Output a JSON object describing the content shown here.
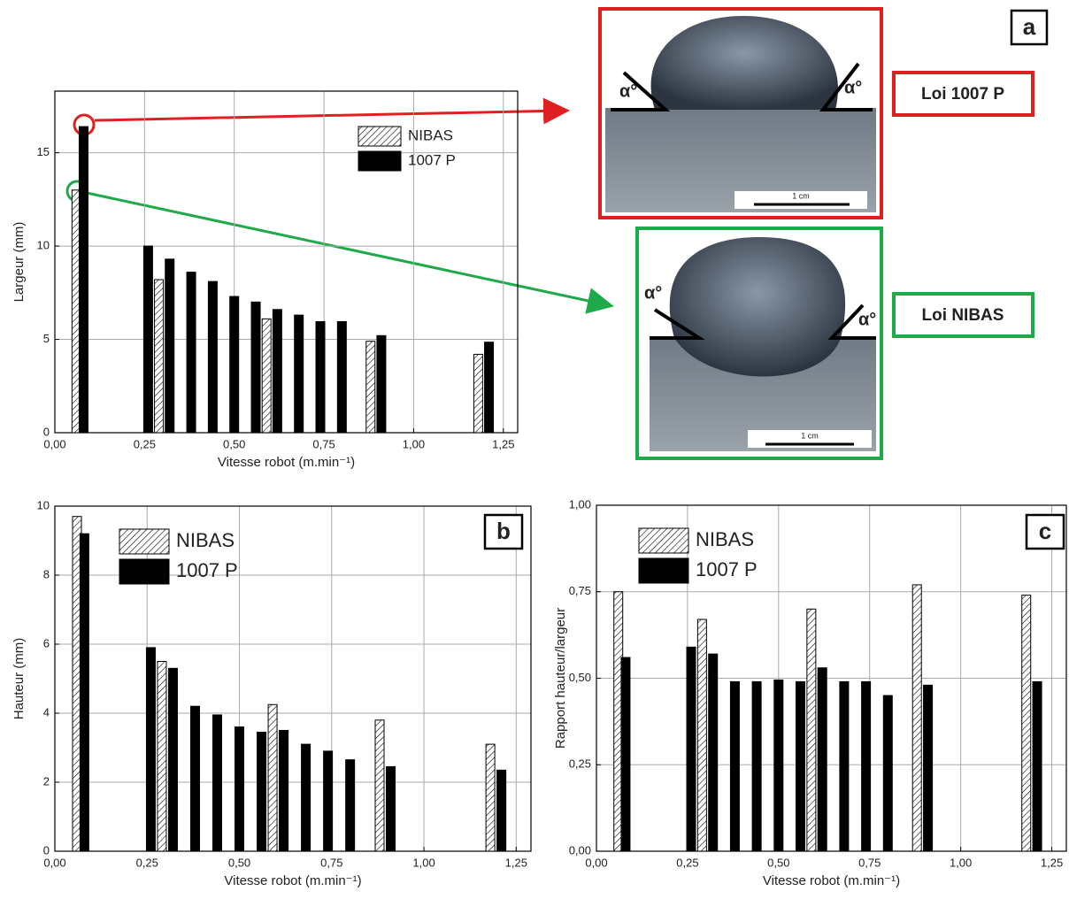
{
  "chart_data": [
    {
      "type": "bar",
      "panel_label": "a",
      "xlabel": "Vitesse robot (m.min⁻¹)",
      "ylabel": "Largeur (mm)",
      "xlim": [
        0,
        1.29
      ],
      "ylim": [
        0,
        18.3
      ],
      "xticks": [
        {
          "value": 0,
          "label": "0,00"
        },
        {
          "value": 0.25,
          "label": "0,25"
        },
        {
          "value": 0.5,
          "label": "0,50"
        },
        {
          "value": 0.75,
          "label": "0,75"
        },
        {
          "value": 1,
          "label": "1,00"
        },
        {
          "value": 1.25,
          "label": "1,25"
        }
      ],
      "yticks": [
        0,
        5,
        10,
        15
      ],
      "grid": true,
      "series": [
        {
          "name": "NIBAS",
          "color": "#000000",
          "hatch": true,
          "x": [
            0.06,
            0.29,
            0.59,
            0.88,
            1.18
          ],
          "values": [
            13.0,
            8.2,
            6.1,
            4.9,
            4.2
          ]
        },
        {
          "name": "1007 P",
          "color": "#000000",
          "hatch": false,
          "x": [
            0.08,
            0.26,
            0.32,
            0.38,
            0.44,
            0.5,
            0.56,
            0.62,
            0.68,
            0.74,
            0.8,
            0.91,
            1.21
          ],
          "values": [
            16.4,
            10.0,
            9.3,
            8.6,
            8.1,
            7.3,
            7.0,
            6.6,
            6.3,
            5.95,
            5.95,
            5.2,
            4.85
          ]
        }
      ]
    },
    {
      "type": "bar",
      "panel_label": "b",
      "xlabel": "Vitesse robot (m.min⁻¹)",
      "ylabel": "Hauteur (mm)",
      "xlim": [
        0,
        1.29
      ],
      "ylim": [
        0,
        10
      ],
      "xticks": [
        {
          "value": 0,
          "label": "0,00"
        },
        {
          "value": 0.25,
          "label": "0,25"
        },
        {
          "value": 0.5,
          "label": "0,50"
        },
        {
          "value": 0.75,
          "label": "0,75"
        },
        {
          "value": 1,
          "label": "1,00"
        },
        {
          "value": 1.25,
          "label": "1,25"
        }
      ],
      "yticks": [
        0,
        2,
        4,
        6,
        8,
        10
      ],
      "grid": true,
      "series": [
        {
          "name": "NIBAS",
          "color": "#000000",
          "hatch": true,
          "x": [
            0.06,
            0.29,
            0.59,
            0.88,
            1.18
          ],
          "values": [
            9.7,
            5.5,
            4.25,
            3.8,
            3.1
          ]
        },
        {
          "name": "1007 P",
          "color": "#000000",
          "hatch": false,
          "x": [
            0.08,
            0.26,
            0.32,
            0.38,
            0.44,
            0.5,
            0.56,
            0.62,
            0.68,
            0.74,
            0.8,
            0.91,
            1.21
          ],
          "values": [
            9.2,
            5.9,
            5.3,
            4.2,
            3.95,
            3.6,
            3.45,
            3.5,
            3.1,
            2.9,
            2.65,
            2.45,
            2.35
          ]
        }
      ]
    },
    {
      "type": "bar",
      "panel_label": "c",
      "xlabel": "Vitesse robot (m.min⁻¹)",
      "ylabel": "Rapport hauteur/largeur",
      "xlim": [
        0,
        1.29
      ],
      "ylim": [
        0,
        1
      ],
      "xticks": [
        {
          "value": 0,
          "label": "0,00"
        },
        {
          "value": 0.25,
          "label": "0,25"
        },
        {
          "value": 0.5,
          "label": "0,50"
        },
        {
          "value": 0.75,
          "label": "0,75"
        },
        {
          "value": 1,
          "label": "1,00"
        },
        {
          "value": 1.25,
          "label": "1,25"
        }
      ],
      "yticks": [
        {
          "value": 0,
          "label": "0,00"
        },
        {
          "value": 0.25,
          "label": "0,25"
        },
        {
          "value": 0.5,
          "label": "0,50"
        },
        {
          "value": 0.75,
          "label": "0,75"
        },
        {
          "value": 1,
          "label": "1,00"
        }
      ],
      "grid": true,
      "series": [
        {
          "name": "NIBAS",
          "color": "#000000",
          "hatch": true,
          "x": [
            0.06,
            0.29,
            0.59,
            0.88,
            1.18
          ],
          "values": [
            0.75,
            0.67,
            0.7,
            0.77,
            0.74
          ]
        },
        {
          "name": "1007 P",
          "color": "#000000",
          "hatch": false,
          "x": [
            0.08,
            0.26,
            0.32,
            0.38,
            0.44,
            0.5,
            0.56,
            0.62,
            0.68,
            0.74,
            0.8,
            0.91,
            1.21
          ],
          "values": [
            0.56,
            0.59,
            0.57,
            0.49,
            0.49,
            0.495,
            0.49,
            0.53,
            0.49,
            0.49,
            0.45,
            0.48,
            0.49
          ]
        }
      ]
    }
  ],
  "micrographs": [
    {
      "label": "Loi 1007 P",
      "angle_left": "α°",
      "angle_right": "α°",
      "scale": "1 cm"
    },
    {
      "label": "Loi NIBAS",
      "angle_left": "α°",
      "angle_right": "α°",
      "scale": "1 cm"
    }
  ]
}
